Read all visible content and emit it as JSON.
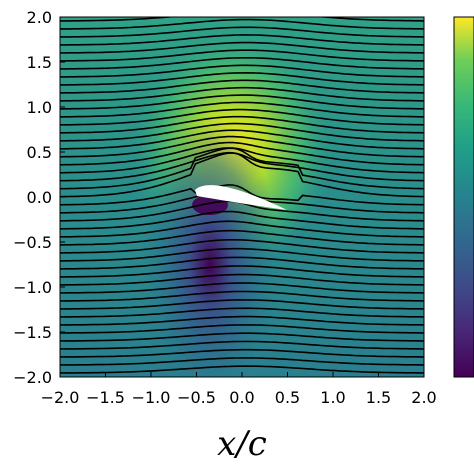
{
  "chart_data": {
    "type": "heatmap",
    "title": "",
    "xlabel": "x/c",
    "ylabel": "",
    "xlim": [
      -2.0,
      2.0
    ],
    "ylim": [
      -2.0,
      2.0
    ],
    "x_ticks": [
      "−2.0",
      "−1.5",
      "−1.0",
      "−0.5",
      "0.0",
      "0.5",
      "1.0",
      "1.5",
      "2.0"
    ],
    "y_ticks": [
      "2.0",
      "1.5",
      "1.0",
      "0.5",
      "0.0",
      "−0.5",
      "−1.0",
      "−1.5",
      "−2.0"
    ],
    "x_tick_values": [
      -2.0,
      -1.5,
      -1.0,
      -0.5,
      0.0,
      0.5,
      1.0,
      1.5,
      2.0
    ],
    "y_tick_values": [
      2.0,
      1.5,
      1.0,
      0.5,
      0.0,
      -0.5,
      -1.0,
      -1.5,
      -2.0
    ],
    "colormap": "viridis",
    "colorbar": true,
    "overlay": "streamlines",
    "streamline_count": 45,
    "streamline_color": "#000000",
    "airfoil": {
      "leading_edge": [
        -0.4,
        0.05
      ],
      "trailing_edge": [
        0.5,
        -0.12
      ],
      "fill": "#ffffff"
    }
  }
}
